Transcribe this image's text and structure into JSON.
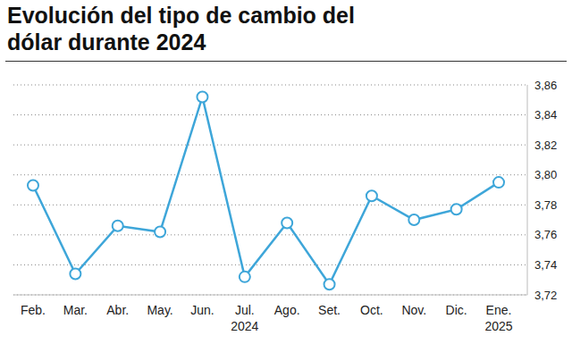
{
  "chart_data": {
    "type": "line",
    "title": "Evolución del tipo de cambio del dólar durante 2024",
    "categories": [
      "Feb.",
      "Mar.",
      "Abr.",
      "May.",
      "Jun.",
      "Jul. 2024",
      "Ago.",
      "Set.",
      "Oct.",
      "Nov.",
      "Dic.",
      "Ene. 2025"
    ],
    "values": [
      3.793,
      3.734,
      3.766,
      3.762,
      3.852,
      3.732,
      3.768,
      3.727,
      3.786,
      3.77,
      3.777,
      3.795
    ],
    "color": "#3ea6d9",
    "marker": "circle",
    "ylim": [
      3.72,
      3.86
    ],
    "yticks": [
      {
        "value": 3.72,
        "label": "3,72"
      },
      {
        "value": 3.74,
        "label": "3,74"
      },
      {
        "value": 3.76,
        "label": "3,76"
      },
      {
        "value": 3.78,
        "label": "3,78"
      },
      {
        "value": 3.8,
        "label": "3,80"
      },
      {
        "value": 3.82,
        "label": "3,82"
      },
      {
        "value": 3.84,
        "label": "3,84"
      },
      {
        "value": 3.86,
        "label": "3,86"
      }
    ],
    "grid": true
  }
}
